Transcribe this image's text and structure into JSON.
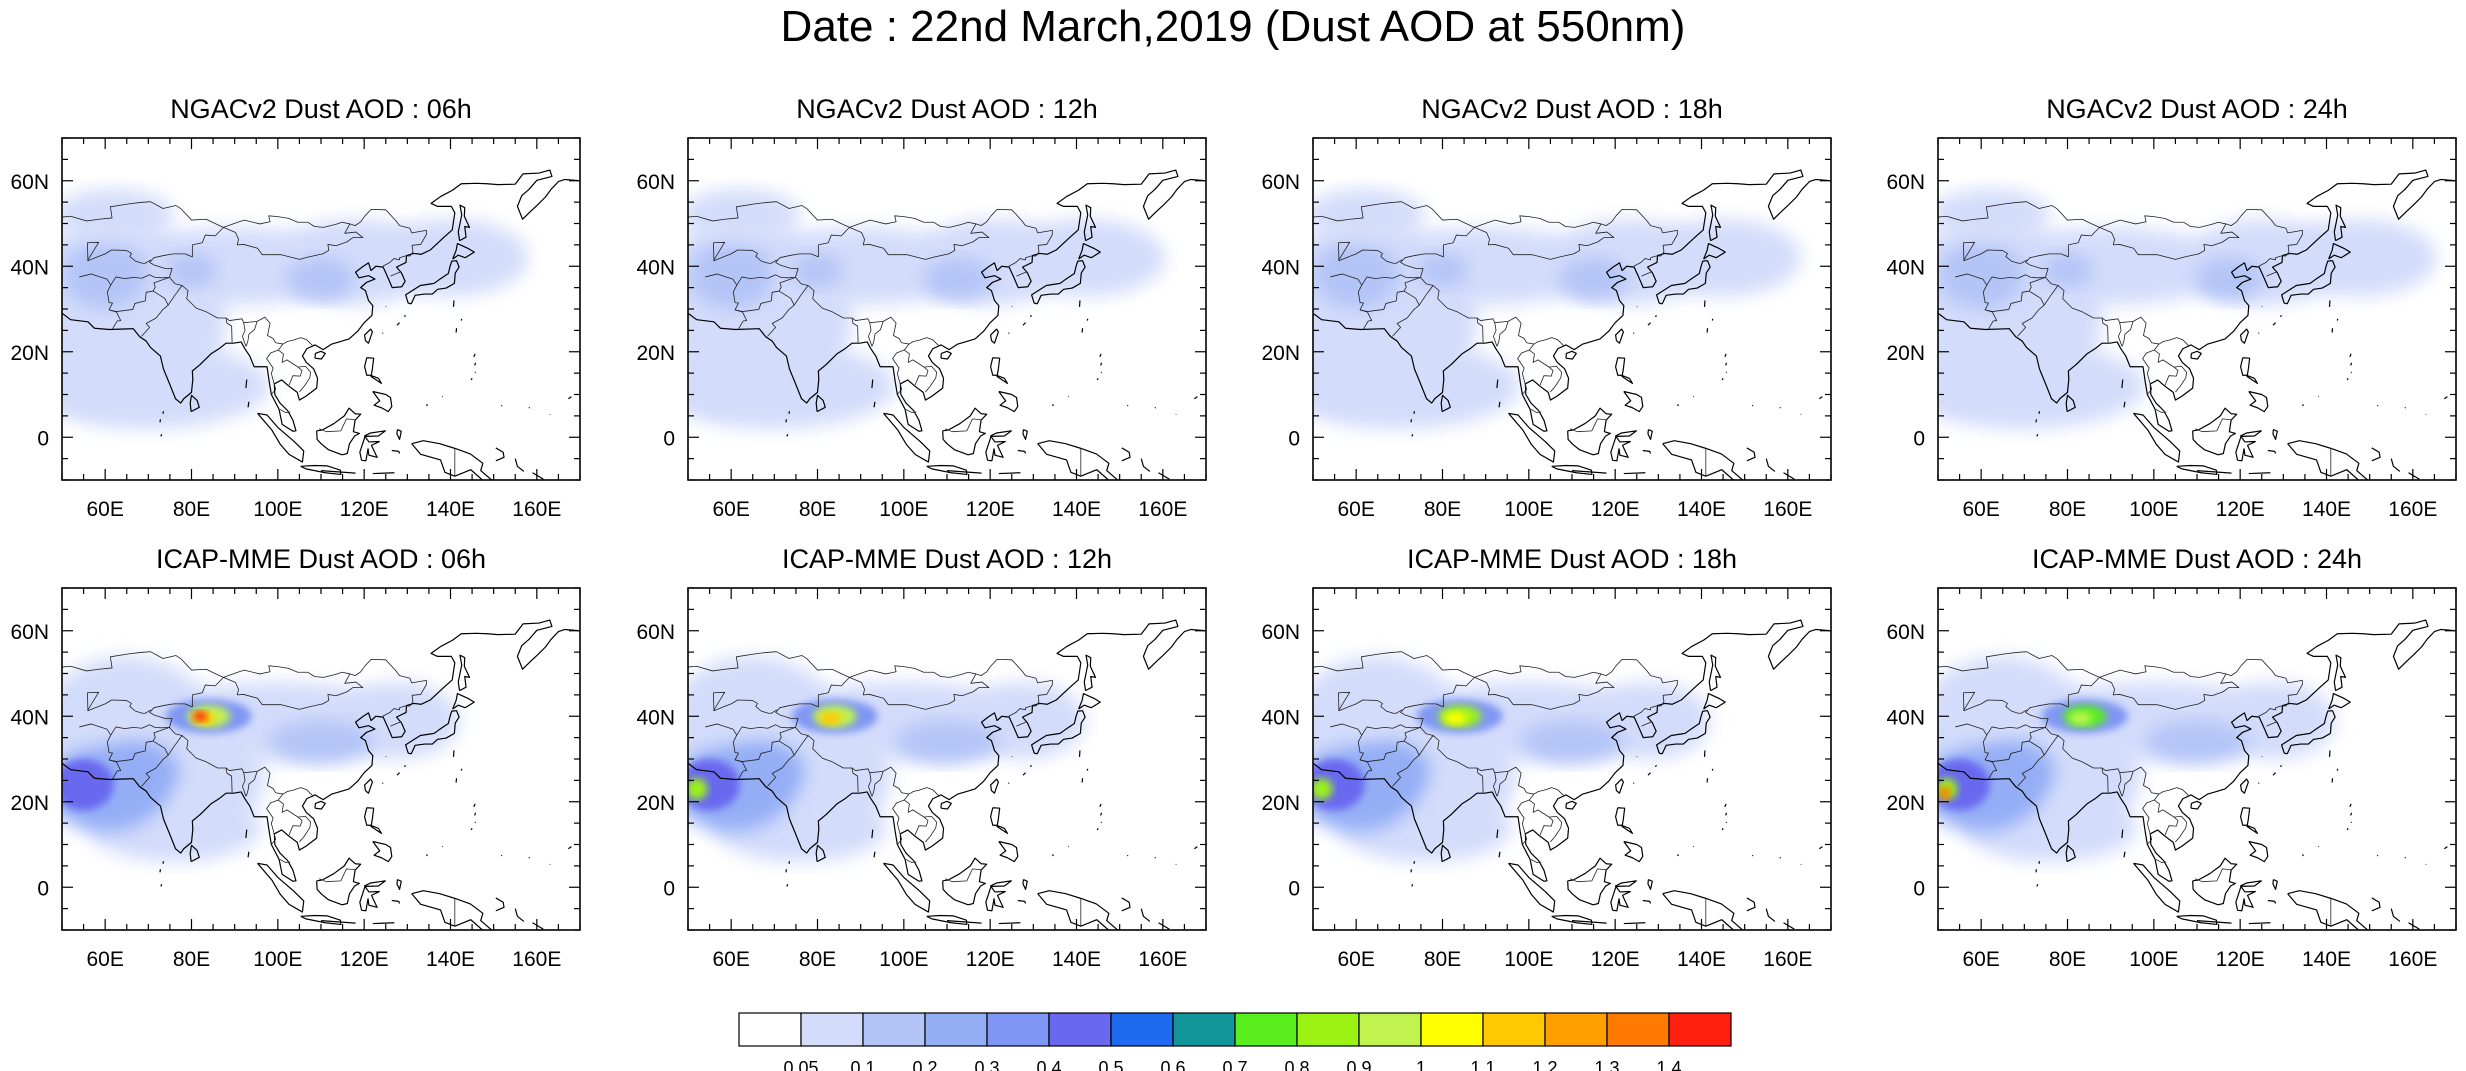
{
  "title": "Date : 22nd March,2019 (Dust AOD at 550nm)",
  "panels": [
    {
      "title": "NGACv2 Dust AOD : 06h",
      "model": "NGACv2",
      "hour": "06h"
    },
    {
      "title": "NGACv2 Dust AOD : 12h",
      "model": "NGACv2",
      "hour": "12h"
    },
    {
      "title": "NGACv2 Dust AOD : 18h",
      "model": "NGACv2",
      "hour": "18h"
    },
    {
      "title": "NGACv2 Dust AOD : 24h",
      "model": "NGACv2",
      "hour": "24h"
    },
    {
      "title": "ICAP-MME Dust AOD : 06h",
      "model": "ICAP-MME",
      "hour": "06h"
    },
    {
      "title": "ICAP-MME Dust AOD : 12h",
      "model": "ICAP-MME",
      "hour": "12h"
    },
    {
      "title": "ICAP-MME Dust AOD : 18h",
      "model": "ICAP-MME",
      "hour": "18h"
    },
    {
      "title": "ICAP-MME Dust AOD : 24h",
      "model": "ICAP-MME",
      "hour": "24h"
    }
  ],
  "map_extent": {
    "lon": [
      50,
      170
    ],
    "lat": [
      -10,
      70
    ]
  },
  "lon_ticks": [
    "60E",
    "80E",
    "100E",
    "120E",
    "140E",
    "160E"
  ],
  "lon_tick_values": [
    60,
    80,
    100,
    120,
    140,
    160
  ],
  "lat_ticks": [
    "60N",
    "40N",
    "20N",
    "0"
  ],
  "lat_tick_values": [
    60,
    40,
    20,
    0
  ],
  "colorbar": {
    "labels": [
      "0.05",
      "0.1",
      "0.2",
      "0.3",
      "0.4",
      "0.5",
      "0.6",
      "0.7",
      "0.8",
      "0.9",
      "1",
      "1.1",
      "1.2",
      "1.3",
      "1.4"
    ],
    "colors": [
      "#ffffff",
      "#d3dcfa",
      "#b3c4f7",
      "#94aef6",
      "#7f96f4",
      "#6969ef",
      "#1e6bef",
      "#12969a",
      "#5aee1e",
      "#9bf213",
      "#c1f44f",
      "#ffff00",
      "#ffc800",
      "#ffa000",
      "#ff7a00",
      "#ff2010"
    ]
  }
}
